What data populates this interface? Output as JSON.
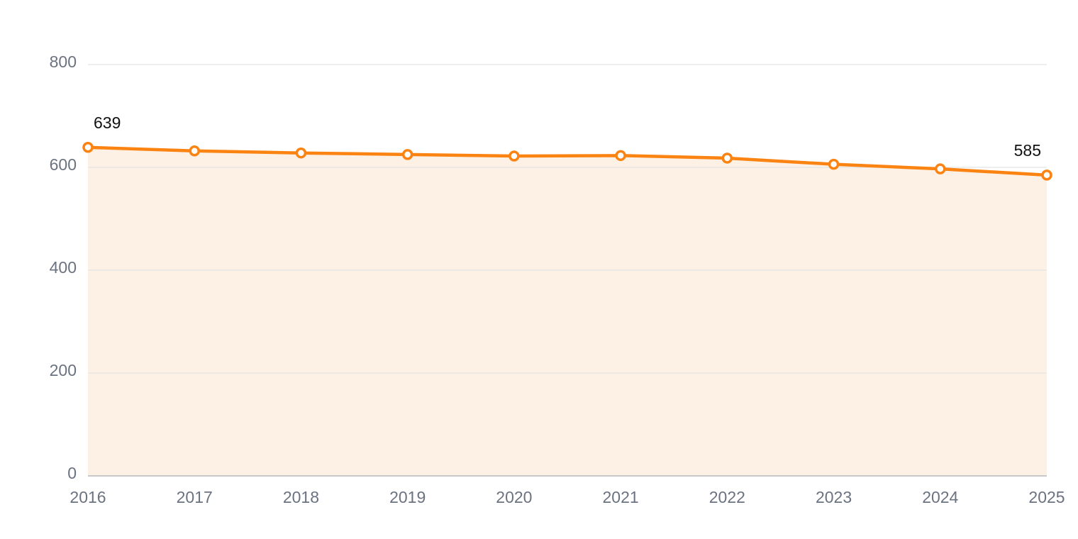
{
  "chart_data": {
    "type": "area",
    "x": [
      2016,
      2017,
      2018,
      2019,
      2020,
      2021,
      2022,
      2023,
      2024,
      2025
    ],
    "values": [
      639,
      632,
      628,
      625,
      622,
      623,
      618,
      606,
      597,
      585
    ],
    "color": "#fb8312",
    "fill_color": "#fdf1e5",
    "xlim": [
      2016,
      2025
    ],
    "xticks": [
      2016,
      2017,
      2018,
      2019,
      2020,
      2021,
      2022,
      2023,
      2024,
      2025
    ],
    "ylim": [
      0,
      800
    ],
    "yticks": [
      0,
      200,
      400,
      600,
      800
    ],
    "grid": true
  }
}
